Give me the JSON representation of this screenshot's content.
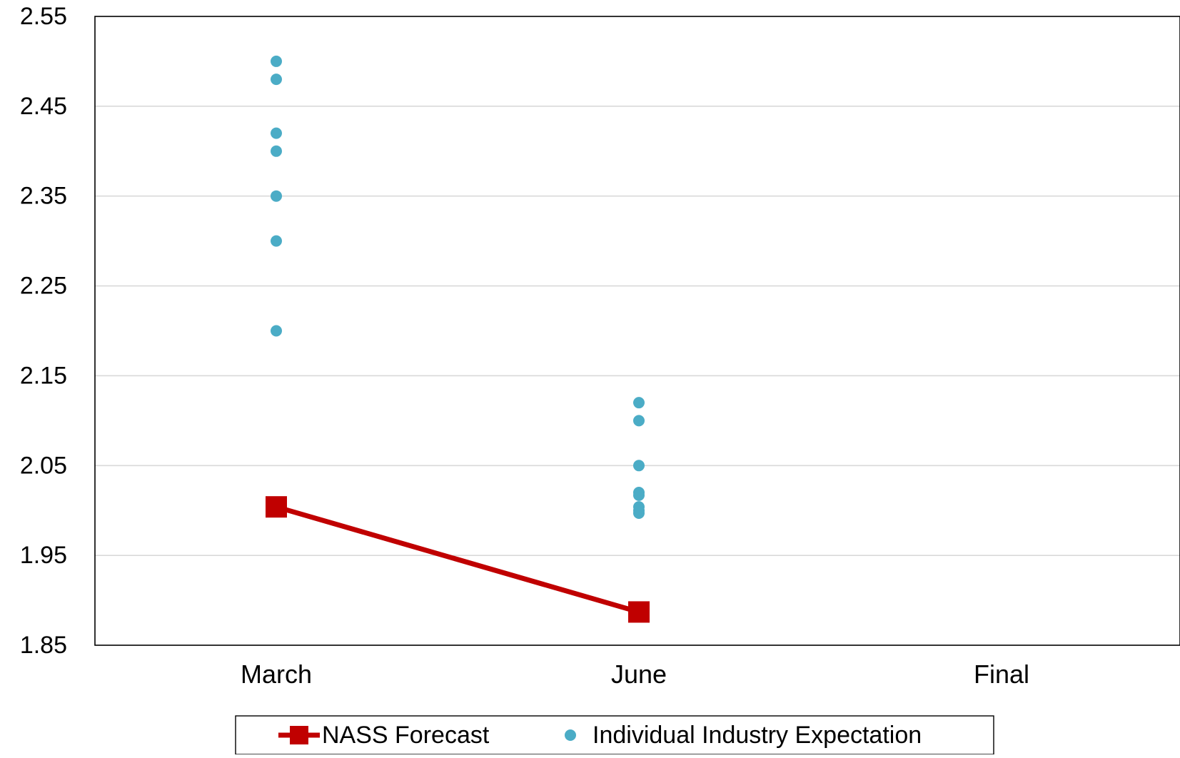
{
  "chart_data": {
    "type": "line",
    "title": "",
    "xlabel": "",
    "ylabel": "",
    "categories": [
      "March",
      "June",
      "Final"
    ],
    "yticks": [
      "1.85",
      "1.95",
      "2.05",
      "2.15",
      "2.25",
      "2.35",
      "2.45",
      "2.55"
    ],
    "ylim": [
      1.85,
      2.55
    ],
    "grid": true,
    "legend_position": "bottom",
    "series": [
      {
        "name": "NASS Forecast",
        "kind": "line-with-square-markers",
        "color": "#C00000",
        "points": [
          {
            "category": "March",
            "value": 2.004
          },
          {
            "category": "June",
            "value": 1.887
          }
        ]
      },
      {
        "name": "Individual Industry Expectation",
        "kind": "scatter",
        "color": "#4BACC6",
        "points": [
          {
            "category": "March",
            "value": 2.5
          },
          {
            "category": "March",
            "value": 2.48
          },
          {
            "category": "March",
            "value": 2.42
          },
          {
            "category": "March",
            "value": 2.4
          },
          {
            "category": "March",
            "value": 2.35
          },
          {
            "category": "March",
            "value": 2.3
          },
          {
            "category": "March",
            "value": 2.2
          },
          {
            "category": "June",
            "value": 2.12
          },
          {
            "category": "June",
            "value": 2.1
          },
          {
            "category": "June",
            "value": 2.05
          },
          {
            "category": "June",
            "value": 2.02
          },
          {
            "category": "June",
            "value": 2.017
          },
          {
            "category": "June",
            "value": 2.004
          },
          {
            "category": "June",
            "value": 2.0
          },
          {
            "category": "June",
            "value": 1.997
          }
        ]
      }
    ]
  }
}
